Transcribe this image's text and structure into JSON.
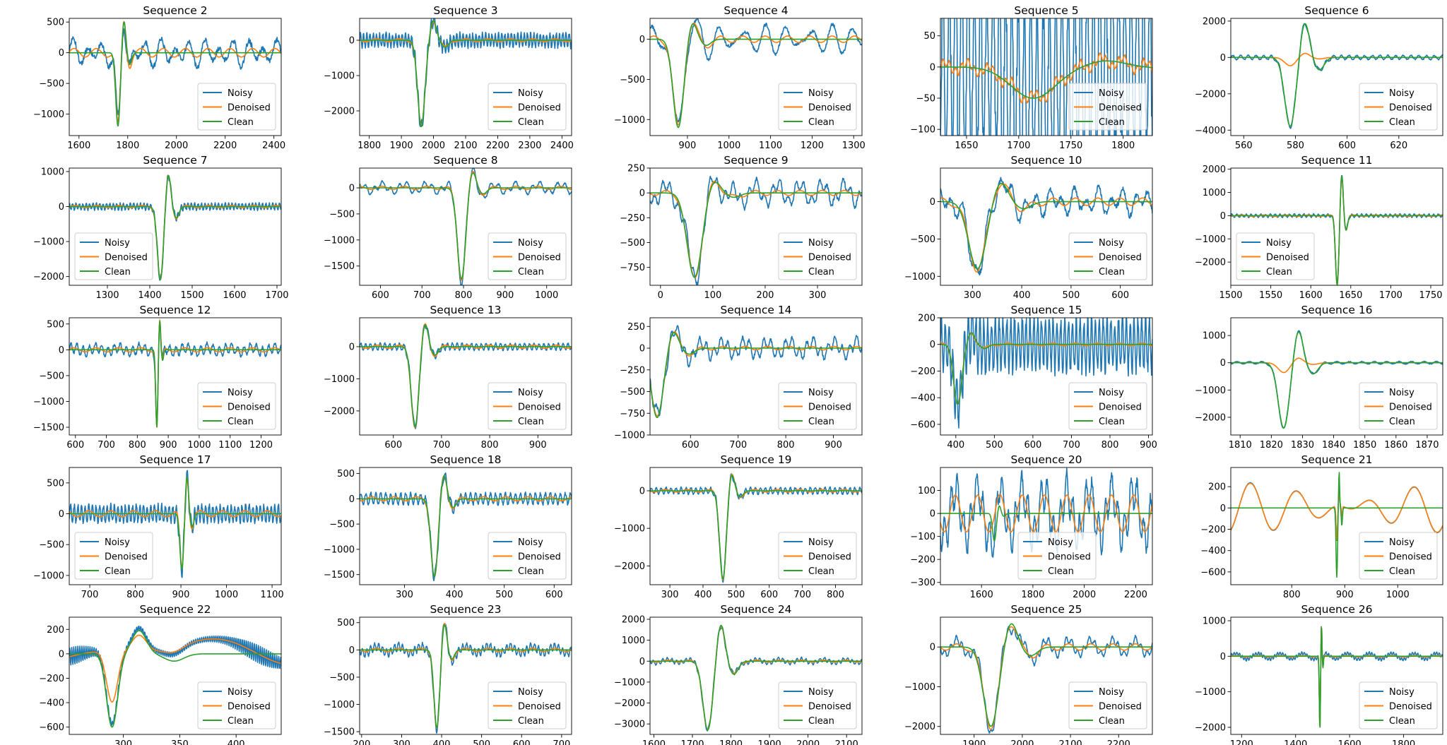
{
  "legend_labels": [
    "Noisy",
    "Denoised",
    "Clean"
  ],
  "colors": {
    "noisy": "#1f77b4",
    "denoised": "#ff7f0e",
    "clean": "#2ca02c"
  },
  "chart_data": [
    {
      "title": "Sequence 2",
      "type": "line",
      "xlim": [
        1560,
        2430
      ],
      "ylim": [
        -1350,
        560
      ],
      "xticks": [
        1600,
        1800,
        2000,
        2200,
        2400
      ],
      "yticks": [
        -1000,
        -500,
        0,
        500
      ],
      "legend": "lower right",
      "ev": 1760,
      "sw": 13,
      "amp": 1200,
      "h": 0.45,
      "nAmp": 200,
      "nPer": 60,
      "oAmp": 90,
      "dAmp": 70,
      "dN": 0,
      "cAmp": 1,
      "cTail": 0,
      "fold": 1.2
    },
    {
      "title": "Sequence 3",
      "type": "line",
      "xlim": [
        1770,
        2430
      ],
      "ylim": [
        -2700,
        620
      ],
      "xticks": [
        1800,
        1900,
        2000,
        2100,
        2200,
        2300,
        2400
      ],
      "yticks": [
        -2000,
        -1000,
        0
      ],
      "legend": "lower right",
      "ev": 1962,
      "sw": 16,
      "amp": 2450,
      "h": 0.23,
      "nAmp": 250,
      "nPer": 10,
      "oAmp": 0,
      "dAmp": 40,
      "dN": 0,
      "cAmp": 1,
      "cTail": 0,
      "fold": 1.5
    },
    {
      "title": "Sequence 4",
      "type": "line",
      "xlim": [
        810,
        1320
      ],
      "ylim": [
        -1200,
        260
      ],
      "xticks": [
        900,
        1000,
        1100,
        1200,
        1300
      ],
      "yticks": [
        -1000,
        -500,
        0
      ],
      "legend": "lower right",
      "ev": 878,
      "sw": 18,
      "amp": 1100,
      "h": 0.2,
      "nAmp": 90,
      "nPer": 40,
      "oAmp": 120,
      "dAmp": 40,
      "dN": 0,
      "cAmp": 1,
      "cTail": 0,
      "fold": 1.2
    },
    {
      "title": "Sequence 5",
      "type": "line",
      "xlim": [
        1625,
        1828
      ],
      "ylim": [
        -110,
        78
      ],
      "xticks": [
        1650,
        1700,
        1750,
        1800
      ],
      "yticks": [
        -100,
        -50,
        0,
        50
      ],
      "legend": "lower right",
      "ev": 1714,
      "sw": 30,
      "amp": 50,
      "h": 0.2,
      "nAmp": 200,
      "nPer": 6,
      "oAmp": 0,
      "dAmp": 8,
      "dN": 0.2,
      "cAmp": 1,
      "cTail": 0,
      "fold": 1.5
    },
    {
      "title": "Sequence 6",
      "type": "line",
      "xlim": [
        555,
        637
      ],
      "ylim": [
        -4300,
        2150
      ],
      "xticks": [
        560,
        580,
        600,
        620
      ],
      "yticks": [
        -4000,
        -2000,
        0,
        2000
      ],
      "legend": "lower right",
      "ev": 578,
      "sw": 3,
      "amp": 3800,
      "h": 0.52,
      "nAmp": 150,
      "nPer": 3,
      "oAmp": 0,
      "dAmp": 0,
      "dN": 0,
      "cAmp": 0.12,
      "cTail": 0,
      "fold": 1.2
    },
    {
      "title": "Sequence 7",
      "type": "line",
      "xlim": [
        1210,
        1710
      ],
      "ylim": [
        -2250,
        1100
      ],
      "xticks": [
        1300,
        1400,
        1500,
        1600,
        1700
      ],
      "yticks": [
        -2000,
        -1000,
        0,
        1000
      ],
      "legend": "lower left",
      "ev": 1425,
      "sw": 10,
      "amp": 2100,
      "h": 0.45,
      "nAmp": 120,
      "nPer": 8,
      "oAmp": 0,
      "dAmp": 30,
      "dN": 0,
      "cAmp": 1,
      "cTail": 0,
      "fold": 1.2
    },
    {
      "title": "Sequence 8",
      "type": "line",
      "xlim": [
        550,
        1060
      ],
      "ylim": [
        -1870,
        380
      ],
      "xticks": [
        600,
        700,
        800,
        900,
        1000
      ],
      "yticks": [
        -1500,
        -1000,
        -500,
        0
      ],
      "legend": "lower right",
      "ev": 795,
      "sw": 14,
      "amp": 1750,
      "h": 0.19,
      "nAmp": 80,
      "nPer": 20,
      "oAmp": 70,
      "dAmp": 30,
      "dN": 0,
      "cAmp": 1,
      "cTail": 0,
      "fold": 1.2
    },
    {
      "title": "Sequence 9",
      "type": "line",
      "xlim": [
        -20,
        385
      ],
      "ylim": [
        -930,
        250
      ],
      "xticks": [
        0,
        100,
        200,
        300
      ],
      "yticks": [
        -750,
        -500,
        -250,
        0,
        250
      ],
      "legend": "lower right",
      "ev": 65,
      "sw": 20,
      "amp": 850,
      "h": 0.15,
      "nAmp": 80,
      "nPer": 15,
      "oAmp": 90,
      "dAmp": 25,
      "dN": 0,
      "cAmp": 1,
      "cTail": 0,
      "fold": 1.2
    },
    {
      "title": "Sequence 10",
      "type": "line",
      "xlim": [
        235,
        665
      ],
      "ylim": [
        -1120,
        450
      ],
      "xticks": [
        300,
        400,
        500,
        600
      ],
      "yticks": [
        -1000,
        -500,
        0
      ],
      "legend": "lower right",
      "ev": 310,
      "sw": 25,
      "amp": 900,
      "h": 0.3,
      "nAmp": 150,
      "nPer": 25,
      "oAmp": 90,
      "dAmp": 50,
      "dN": 0,
      "cAmp": 1,
      "cTail": 0,
      "fold": 1.2
    },
    {
      "title": "Sequence 11",
      "type": "line",
      "xlim": [
        1500,
        1765
      ],
      "ylim": [
        -3000,
        2050
      ],
      "xticks": [
        1500,
        1550,
        1600,
        1650,
        1700,
        1750
      ],
      "yticks": [
        -2000,
        -1000,
        0,
        1000,
        2000
      ],
      "legend": "lower left",
      "ev": 1633,
      "sw": 3,
      "amp": 3000,
      "h": 0.6,
      "nAmp": 90,
      "nPer": 6,
      "oAmp": 0,
      "dAmp": 30,
      "dN": 0,
      "cAmp": 1,
      "cTail": 0,
      "fold": 1.2
    },
    {
      "title": "Sequence 12",
      "type": "line",
      "xlim": [
        580,
        1265
      ],
      "ylim": [
        -1650,
        620
      ],
      "xticks": [
        600,
        700,
        800,
        900,
        1000,
        1100,
        1200
      ],
      "yticks": [
        -1500,
        -1000,
        -500,
        0,
        500
      ],
      "legend": "lower right",
      "ev": 863,
      "sw": 5,
      "amp": 1500,
      "h": 0.4,
      "nAmp": 120,
      "nPer": 20,
      "oAmp": 40,
      "dAmp": 40,
      "dN": 0,
      "cAmp": 1,
      "cTail": 0,
      "fold": 1.2
    },
    {
      "title": "Sequence 13",
      "type": "line",
      "xlim": [
        530,
        970
      ],
      "ylim": [
        -2750,
        900
      ],
      "xticks": [
        600,
        700,
        800,
        900
      ],
      "yticks": [
        -2000,
        -1000,
        0
      ],
      "legend": "lower right",
      "ev": 645,
      "sw": 11,
      "amp": 2500,
      "h": 0.3,
      "nAmp": 130,
      "nPer": 10,
      "oAmp": 0,
      "dAmp": 50,
      "dN": 0,
      "cAmp": 1,
      "cTail": 0,
      "fold": 1.2
    },
    {
      "title": "Sequence 14",
      "type": "line",
      "xlim": [
        515,
        960
      ],
      "ylim": [
        -1000,
        350
      ],
      "xticks": [
        600,
        700,
        800,
        900
      ],
      "yticks": [
        -1000,
        -750,
        -500,
        -250,
        0,
        250
      ],
      "legend": "lower right",
      "ev": 530,
      "sw": 18,
      "amp": 800,
      "h": 0.25,
      "nAmp": 90,
      "nPer": 15,
      "oAmp": 70,
      "dAmp": 20,
      "dN": 0,
      "cAmp": 1,
      "cTail": 0,
      "fold": 1.2
    },
    {
      "title": "Sequence 15",
      "type": "line",
      "xlim": [
        360,
        910
      ],
      "ylim": [
        -680,
        200
      ],
      "xticks": [
        400,
        500,
        600,
        700,
        800,
        900
      ],
      "yticks": [
        -600,
        -400,
        -200,
        0,
        200
      ],
      "legend": "lower right",
      "ev": 405,
      "sw": 15,
      "amp": 450,
      "h": 0.2,
      "nAmp": 250,
      "nPer": 10,
      "oAmp": 0,
      "dAmp": 10,
      "dN": 0,
      "cAmp": 1,
      "cTail": 0,
      "fold": 1.5
    },
    {
      "title": "Sequence 16",
      "type": "line",
      "xlim": [
        1807,
        1875
      ],
      "ylim": [
        -2650,
        1650
      ],
      "xticks": [
        1810,
        1820,
        1830,
        1840,
        1850,
        1860,
        1870
      ],
      "yticks": [
        -2000,
        -1000,
        0,
        1000
      ],
      "legend": "lower right",
      "ev": 1824,
      "sw": 2.5,
      "amp": 2400,
      "h": 0.5,
      "nAmp": 60,
      "nPer": 4,
      "oAmp": 0,
      "dAmp": 0,
      "dN": 0,
      "cAmp": 0.15,
      "cTail": 0,
      "fold": 1.2
    },
    {
      "title": "Sequence 17",
      "type": "line",
      "xlim": [
        655,
        1120
      ],
      "ylim": [
        -1150,
        750
      ],
      "xticks": [
        700,
        800,
        900,
        1000,
        1100
      ],
      "yticks": [
        -1000,
        -500,
        0,
        500
      ],
      "legend": "lower left",
      "ev": 902,
      "sw": 6,
      "amp": 900,
      "h": 0.7,
      "nAmp": 180,
      "nPer": 8,
      "oAmp": 0,
      "dAmp": 50,
      "dN": 0,
      "cAmp": 1,
      "cTail": 0,
      "fold": 1.2
    },
    {
      "title": "Sequence 18",
      "type": "line",
      "xlim": [
        210,
        635
      ],
      "ylim": [
        -1700,
        620
      ],
      "xticks": [
        300,
        400,
        500,
        600
      ],
      "yticks": [
        -1500,
        -1000,
        -500,
        0,
        500
      ],
      "legend": "lower right",
      "ev": 360,
      "sw": 10,
      "amp": 1550,
      "h": 0.32,
      "nAmp": 140,
      "nPer": 10,
      "oAmp": 0,
      "dAmp": 40,
      "dN": 0,
      "cAmp": 1,
      "cTail": 0,
      "fold": 1.2
    },
    {
      "title": "Sequence 19",
      "type": "line",
      "xlim": [
        240,
        880
      ],
      "ylim": [
        -2500,
        620
      ],
      "xticks": [
        300,
        400,
        500,
        600,
        700,
        800
      ],
      "yticks": [
        -2000,
        -1000,
        0
      ],
      "legend": "lower right",
      "ev": 460,
      "sw": 14,
      "amp": 2350,
      "h": 0.2,
      "nAmp": 110,
      "nPer": 15,
      "oAmp": 0,
      "dAmp": 30,
      "dN": 0,
      "cAmp": 1,
      "cTail": 0,
      "fold": 1.2
    },
    {
      "title": "Sequence 20",
      "type": "line",
      "xlim": [
        1440,
        2265
      ],
      "ylim": [
        -310,
        200
      ],
      "xticks": [
        1600,
        1800,
        2000,
        2200
      ],
      "yticks": [
        -300,
        -200,
        -100,
        0,
        100
      ],
      "legend": "lower center",
      "ev": 1650,
      "sw": 10,
      "amp": 120,
      "h": 0.3,
      "nAmp": 100,
      "nPer": 25,
      "oAmp": 100,
      "dAmp": 0,
      "dN": 0.8,
      "cAmp": 0.1,
      "cTail": 0,
      "fold": 1.2
    },
    {
      "title": "Sequence 21",
      "type": "line",
      "xlim": [
        685,
        1085
      ],
      "ylim": [
        -720,
        380
      ],
      "xticks": [
        800,
        900,
        1000
      ],
      "yticks": [
        -600,
        -400,
        -200,
        0,
        200
      ],
      "legend": "lower right",
      "ev": 885,
      "sw": 2,
      "amp": 650,
      "h": 0.55,
      "nAmp": 0,
      "nPer": 8,
      "oAmp": 260,
      "dAmp": 0,
      "dN": 0,
      "cAmp": 0,
      "cTail": 0,
      "fold": 1.2,
      "wander": true
    },
    {
      "title": "Sequence 22",
      "type": "line",
      "xlim": [
        252,
        440
      ],
      "ylim": [
        -660,
        300
      ],
      "xticks": [
        300,
        350,
        400
      ],
      "yticks": [
        -600,
        -400,
        -200,
        0,
        200
      ],
      "legend": "lower right",
      "ev": 290,
      "sw": 7,
      "amp": 600,
      "h": 0.3,
      "nAmp": 60,
      "nPer": 1.8,
      "oAmp": 0,
      "dAmp": 0,
      "dN": 0,
      "cAmp": 1,
      "cTail": 0,
      "fold": 1.2,
      "drift": true
    },
    {
      "title": "Sequence 23",
      "type": "line",
      "xlim": [
        195,
        725
      ],
      "ylim": [
        -1550,
        600
      ],
      "xticks": [
        200,
        300,
        400,
        500,
        600,
        700
      ],
      "yticks": [
        -1500,
        -1000,
        -500,
        0,
        500
      ],
      "legend": "lower right",
      "ev": 388,
      "sw": 10,
      "amp": 1430,
      "h": 0.35,
      "nAmp": 90,
      "nPer": 10,
      "oAmp": 60,
      "dAmp": 30,
      "dN": 0,
      "cAmp": 1,
      "cTail": 0,
      "fold": 1.2
    },
    {
      "title": "Sequence 24",
      "type": "line",
      "xlim": [
        1590,
        2140
      ],
      "ylim": [
        -3500,
        2100
      ],
      "xticks": [
        1600,
        1700,
        1800,
        1900,
        2000,
        2100
      ],
      "yticks": [
        -3000,
        -2000,
        -1000,
        0,
        1000,
        2000
      ],
      "legend": "lower right",
      "ev": 1740,
      "sw": 18,
      "amp": 3300,
      "h": 0.55,
      "nAmp": 120,
      "nPer": 12,
      "oAmp": 80,
      "dAmp": 50,
      "dN": 0,
      "cAmp": 1,
      "cTail": 0,
      "fold": 1.2
    },
    {
      "title": "Sequence 25",
      "type": "line",
      "xlim": [
        1830,
        2270
      ],
      "ylim": [
        -2200,
        750
      ],
      "xticks": [
        1900,
        2000,
        2100,
        2200
      ],
      "yticks": [
        -2000,
        -1000,
        0
      ],
      "legend": "lower right",
      "ev": 1935,
      "sw": 22,
      "amp": 2000,
      "h": 0.32,
      "nAmp": 120,
      "nPer": 12,
      "oAmp": 180,
      "dAmp": 80,
      "dN": 0,
      "cAmp": 1,
      "cTail": 0,
      "fold": 1.2
    },
    {
      "title": "Sequence 26",
      "type": "line",
      "xlim": [
        1160,
        1945
      ],
      "ylim": [
        -2200,
        1100
      ],
      "xticks": [
        1200,
        1400,
        1600,
        1800
      ],
      "yticks": [
        -2000,
        -1000,
        0,
        1000
      ],
      "legend": "lower right",
      "ev": 1490,
      "sw": 3,
      "amp": 2100,
      "h": 0.45,
      "nAmp": 60,
      "nPer": 10,
      "oAmp": 80,
      "dAmp": 20,
      "dN": 0,
      "cAmp": 1,
      "cTail": 0,
      "fold": 1.2
    }
  ]
}
